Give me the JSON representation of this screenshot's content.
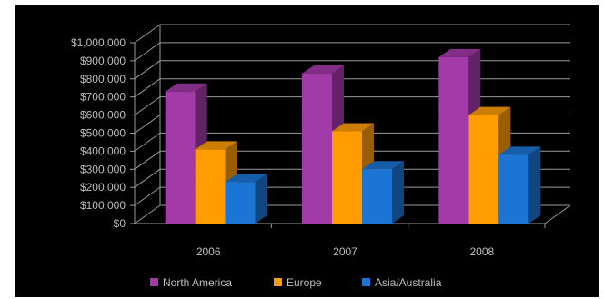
{
  "chart_data": {
    "type": "bar",
    "categories": [
      "2006",
      "2007",
      "2008"
    ],
    "series": [
      {
        "name": "North America",
        "color": "#a23aa8",
        "values": [
          730000,
          830000,
          920000
        ]
      },
      {
        "name": "Europe",
        "color": "#ff9d00",
        "values": [
          410000,
          510000,
          600000
        ]
      },
      {
        "name": "Asia/Australia",
        "color": "#1c74d4",
        "values": [
          230000,
          300000,
          380000
        ]
      }
    ],
    "ylim": [
      0,
      1000000
    ],
    "yticks": [
      0,
      100000,
      200000,
      300000,
      400000,
      500000,
      600000,
      700000,
      800000,
      900000,
      1000000
    ],
    "ytick_labels": [
      "$0",
      "$100,000",
      "$200,000",
      "$300,000",
      "$400,000",
      "$500,000",
      "$600,000",
      "$700,000",
      "$800,000",
      "$900,000",
      "$1,000,000"
    ],
    "grid": true,
    "legend_position": "bottom",
    "background": "#000000",
    "three_d": true
  }
}
